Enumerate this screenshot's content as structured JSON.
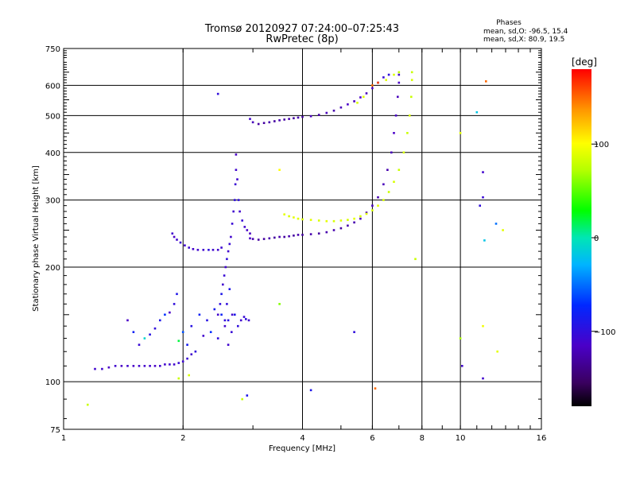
{
  "header": {
    "title_line1": "Tromsø 20120927 07:24:00–07:25:43",
    "title_line2": "RwPretec (8p)"
  },
  "stats": {
    "heading": "Phases",
    "line_o": "mean, sd,O: -96.5, 15.4",
    "line_x": "mean, sd,X:  80.9, 19.5"
  },
  "colorbar": {
    "label": "[deg]",
    "min": -180,
    "max": 180,
    "ticks": [
      {
        "value": 100,
        "label": "100"
      },
      {
        "value": 0,
        "label": "0"
      },
      {
        "value": -100,
        "label": "−100"
      }
    ]
  },
  "chart_data": {
    "type": "scatter",
    "title": "Tromsø 20120927 07:24:00–07:25:43",
    "subtitle": "RwPretec (8p)",
    "xlabel": "Frequency [MHz]",
    "ylabel": "Stationary phase Virtual Height [km]",
    "xscale": "log",
    "yscale": "log",
    "xlim": [
      1,
      16
    ],
    "ylim": [
      75,
      750
    ],
    "grid": true,
    "x_gridlines": [
      2,
      4,
      6,
      8,
      10
    ],
    "y_gridlines": [
      100,
      200,
      300,
      400,
      500,
      600
    ],
    "x_ticks": [
      {
        "value": 1,
        "label": "1"
      },
      {
        "value": 2,
        "label": "2"
      },
      {
        "value": 4,
        "label": "4"
      },
      {
        "value": 6,
        "label": "6"
      },
      {
        "value": 8,
        "label": "8"
      },
      {
        "value": 10,
        "label": "10"
      },
      {
        "value": 16,
        "label": "16"
      }
    ],
    "y_ticks": [
      {
        "value": 75,
        "label": "75"
      },
      {
        "value": 100,
        "label": "100"
      },
      {
        "value": 200,
        "label": "200"
      },
      {
        "value": 300,
        "label": "300"
      },
      {
        "value": 400,
        "label": "400"
      },
      {
        "value": 500,
        "label": "500"
      },
      {
        "value": 600,
        "label": "600"
      },
      {
        "value": 750,
        "label": "750"
      }
    ],
    "color_by": "phase [deg]",
    "series": [
      {
        "points": [
          [
            1.2,
            108,
            -110
          ],
          [
            1.25,
            108,
            -110
          ],
          [
            1.3,
            109,
            -115
          ],
          [
            1.35,
            110,
            -110
          ],
          [
            1.4,
            110,
            -115
          ],
          [
            1.45,
            110,
            -110
          ],
          [
            1.5,
            110,
            -115
          ],
          [
            1.55,
            110,
            -110
          ],
          [
            1.6,
            110,
            -112
          ],
          [
            1.65,
            110,
            -110
          ],
          [
            1.7,
            110,
            -115
          ],
          [
            1.75,
            110,
            -110
          ],
          [
            1.8,
            111,
            -110
          ],
          [
            1.85,
            111,
            -108
          ],
          [
            1.9,
            111,
            -110
          ],
          [
            1.95,
            112,
            -105
          ],
          [
            2.0,
            113,
            -108
          ],
          [
            2.05,
            115,
            -105
          ],
          [
            2.1,
            118,
            -110
          ],
          [
            2.15,
            120,
            -100
          ]
        ]
      },
      {
        "points": [
          [
            1.45,
            145,
            -115
          ],
          [
            1.5,
            135,
            -80
          ],
          [
            1.55,
            125,
            -105
          ],
          [
            1.6,
            130,
            -10
          ],
          [
            1.65,
            133,
            -95
          ],
          [
            1.7,
            138,
            -100
          ],
          [
            1.75,
            145,
            -90
          ],
          [
            1.8,
            150,
            -70
          ],
          [
            1.85,
            152,
            -115
          ],
          [
            1.9,
            160,
            -100
          ],
          [
            1.93,
            170,
            -90
          ],
          [
            1.95,
            128,
            20
          ],
          [
            2.0,
            135,
            -60
          ],
          [
            2.05,
            125,
            -85
          ],
          [
            2.1,
            140,
            -95
          ],
          [
            2.2,
            150,
            -80
          ],
          [
            2.25,
            132,
            -110
          ],
          [
            2.3,
            145,
            -95
          ],
          [
            2.35,
            135,
            -70
          ],
          [
            2.4,
            155,
            -85
          ],
          [
            2.45,
            130,
            -100
          ],
          [
            2.5,
            150,
            -80
          ],
          [
            2.55,
            140,
            -110
          ],
          [
            2.6,
            145,
            -95
          ],
          [
            2.7,
            150,
            -90
          ],
          [
            2.75,
            140,
            -100
          ],
          [
            2.8,
            145,
            -110
          ],
          [
            2.85,
            148,
            -105
          ],
          [
            2.88,
            146,
            -100
          ],
          [
            2.93,
            145,
            -110
          ]
        ]
      },
      {
        "points": [
          [
            1.88,
            245,
            -110
          ],
          [
            1.9,
            240,
            -115
          ],
          [
            1.93,
            236,
            -110
          ],
          [
            1.97,
            232,
            -105
          ],
          [
            2.02,
            228,
            -110
          ],
          [
            2.07,
            225,
            -108
          ],
          [
            2.12,
            223,
            -112
          ],
          [
            2.18,
            222,
            -110
          ],
          [
            2.25,
            222,
            -110
          ],
          [
            2.32,
            222,
            -100
          ],
          [
            2.38,
            222,
            -110
          ],
          [
            2.45,
            222,
            -110
          ],
          [
            2.5,
            225,
            -108
          ]
        ]
      },
      {
        "points": [
          [
            2.45,
            150,
            -110
          ],
          [
            2.48,
            160,
            -100
          ],
          [
            2.5,
            170,
            -90
          ],
          [
            2.52,
            180,
            -110
          ],
          [
            2.54,
            190,
            -105
          ],
          [
            2.56,
            200,
            -110
          ],
          [
            2.58,
            210,
            -100
          ],
          [
            2.6,
            220,
            -110
          ],
          [
            2.62,
            230,
            -105
          ],
          [
            2.64,
            240,
            -110
          ],
          [
            2.66,
            260,
            -105
          ],
          [
            2.68,
            280,
            -110
          ],
          [
            2.7,
            300,
            -100
          ],
          [
            2.71,
            330,
            -105
          ],
          [
            2.72,
            360,
            -110
          ],
          [
            2.72,
            395,
            -115
          ],
          [
            2.74,
            340,
            -110
          ],
          [
            2.76,
            300,
            -100
          ],
          [
            2.78,
            280,
            -110
          ],
          [
            2.82,
            265,
            -105
          ],
          [
            2.86,
            255,
            -110
          ],
          [
            2.9,
            250,
            -115
          ],
          [
            2.95,
            245,
            -120
          ],
          [
            2.55,
            145,
            -100
          ],
          [
            2.6,
            125,
            -110
          ],
          [
            2.65,
            135,
            -105
          ],
          [
            2.58,
            160,
            -100
          ],
          [
            2.62,
            175,
            -90
          ],
          [
            2.66,
            150,
            -110
          ]
        ]
      },
      {
        "points": [
          [
            2.95,
            238,
            -115
          ],
          [
            3.0,
            237,
            -125
          ],
          [
            3.1,
            236,
            -130
          ],
          [
            3.2,
            237,
            -130
          ],
          [
            3.3,
            238,
            -125
          ],
          [
            3.4,
            239,
            -130
          ],
          [
            3.5,
            240,
            -125
          ],
          [
            3.6,
            240,
            -130
          ],
          [
            3.7,
            241,
            -125
          ],
          [
            3.8,
            242,
            -130
          ],
          [
            3.9,
            243,
            -125
          ],
          [
            4.0,
            243,
            -130
          ],
          [
            4.2,
            244,
            -125
          ],
          [
            4.4,
            245,
            -130
          ],
          [
            4.6,
            247,
            -125
          ],
          [
            4.8,
            250,
            -125
          ],
          [
            5.0,
            253,
            -130
          ],
          [
            5.2,
            257,
            -125
          ],
          [
            5.4,
            262,
            -125
          ],
          [
            5.6,
            268,
            -120
          ],
          [
            5.8,
            278,
            -125
          ],
          [
            6.0,
            290,
            -120
          ],
          [
            6.2,
            305,
            -125
          ],
          [
            6.4,
            330,
            -120
          ],
          [
            6.55,
            360,
            -125
          ],
          [
            6.7,
            400,
            -120
          ],
          [
            6.8,
            450,
            -115
          ],
          [
            6.88,
            500,
            -115
          ],
          [
            6.95,
            560,
            -120
          ],
          [
            7.0,
            610,
            -115
          ],
          [
            7.0,
            640,
            -110
          ]
        ]
      },
      {
        "points": [
          [
            2.95,
            490,
            -110
          ],
          [
            3.0,
            480,
            -120
          ],
          [
            3.1,
            475,
            -130
          ],
          [
            3.2,
            478,
            -130
          ],
          [
            3.3,
            480,
            -125
          ],
          [
            3.4,
            483,
            -130
          ],
          [
            3.5,
            486,
            -125
          ],
          [
            3.6,
            488,
            -130
          ],
          [
            3.7,
            490,
            -125
          ],
          [
            3.8,
            492,
            -130
          ],
          [
            3.9,
            494,
            -125
          ],
          [
            4.0,
            496,
            -130
          ],
          [
            4.2,
            498,
            -120
          ],
          [
            4.4,
            502,
            -125
          ],
          [
            4.6,
            508,
            -120
          ],
          [
            4.8,
            515,
            -125
          ],
          [
            5.0,
            525,
            -120
          ],
          [
            5.2,
            535,
            -115
          ],
          [
            5.4,
            545,
            -120
          ],
          [
            5.6,
            558,
            -115
          ],
          [
            5.8,
            572,
            -120
          ],
          [
            6.0,
            590,
            -115
          ],
          [
            6.2,
            610,
            -110
          ],
          [
            6.4,
            630,
            -105
          ],
          [
            6.6,
            640,
            -100
          ]
        ]
      },
      {
        "points": [
          [
            3.6,
            275,
            90
          ],
          [
            3.7,
            272,
            85
          ],
          [
            3.8,
            270,
            90
          ],
          [
            3.9,
            268,
            88
          ],
          [
            4.0,
            267,
            85
          ],
          [
            4.2,
            266,
            90
          ],
          [
            4.4,
            265,
            85
          ],
          [
            4.6,
            264,
            90
          ],
          [
            4.8,
            264,
            85
          ],
          [
            5.0,
            265,
            88
          ],
          [
            5.2,
            266,
            85
          ],
          [
            5.4,
            268,
            90
          ],
          [
            5.6,
            272,
            85
          ],
          [
            5.8,
            276,
            90
          ],
          [
            6.0,
            282,
            85
          ],
          [
            6.2,
            290,
            90
          ],
          [
            6.4,
            300,
            85
          ],
          [
            6.6,
            315,
            80
          ],
          [
            6.8,
            335,
            85
          ],
          [
            7.0,
            360,
            80
          ],
          [
            7.2,
            400,
            85
          ],
          [
            7.35,
            450,
            80
          ],
          [
            7.45,
            500,
            85
          ],
          [
            7.52,
            560,
            80
          ],
          [
            7.55,
            620,
            85
          ],
          [
            7.55,
            650,
            80
          ]
        ]
      },
      {
        "points": [
          [
            5.5,
            540,
            85
          ],
          [
            5.7,
            560,
            90
          ],
          [
            6.0,
            600,
            150
          ],
          [
            6.2,
            610,
            160
          ],
          [
            6.5,
            620,
            90
          ],
          [
            6.8,
            640,
            85
          ],
          [
            7.0,
            650,
            75
          ]
        ]
      },
      {
        "points": [
          [
            1.15,
            87,
            80
          ],
          [
            2.45,
            570,
            -100
          ],
          [
            3.5,
            360,
            100
          ],
          [
            3.5,
            160,
            60
          ],
          [
            4.2,
            95,
            -90
          ],
          [
            5.4,
            135,
            -100
          ],
          [
            6.1,
            96,
            150
          ],
          [
            7.7,
            210,
            80
          ],
          [
            10.0,
            450,
            90
          ],
          [
            10.1,
            110,
            -110
          ],
          [
            10.0,
            130,
            70
          ],
          [
            11.0,
            510,
            -20
          ],
          [
            11.2,
            290,
            -100
          ],
          [
            11.4,
            355,
            -110
          ],
          [
            11.4,
            305,
            -105
          ],
          [
            11.5,
            235,
            -20
          ],
          [
            11.4,
            102,
            -110
          ],
          [
            11.6,
            615,
            150
          ],
          [
            11.4,
            140,
            95
          ],
          [
            12.3,
            260,
            -50
          ],
          [
            12.4,
            120,
            90
          ],
          [
            12.8,
            250,
            90
          ],
          [
            2.82,
            90,
            80
          ],
          [
            2.9,
            92,
            -90
          ],
          [
            1.95,
            102,
            80
          ],
          [
            2.07,
            104,
            85
          ]
        ]
      }
    ]
  }
}
